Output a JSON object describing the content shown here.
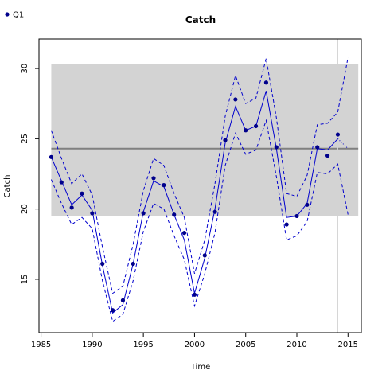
{
  "chart_data": {
    "type": "line",
    "title": "Catch",
    "xlabel": "Time",
    "ylabel": "Catch",
    "xlim": [
      1984.8,
      2016.3
    ],
    "ylim": [
      11.2,
      32.1
    ],
    "xticks": [
      1985,
      1990,
      1995,
      2000,
      2005,
      2010,
      2015
    ],
    "yticks": [
      15,
      20,
      25,
      30
    ],
    "grid": false,
    "legend_position": "top-left",
    "colors": {
      "observed": "#00008b",
      "fit": "#0000cd",
      "band": "#d3d3d3",
      "reference_line": "#808080",
      "vline": "#d3d3d3"
    },
    "legend": [
      {
        "label": "Q1",
        "color": "#00008b",
        "marker": "point"
      }
    ],
    "reference_band": {
      "x_start": 1986,
      "x_end": 2016,
      "y_low": 19.5,
      "y_high": 30.3
    },
    "reference_line": {
      "y": 24.3,
      "x_start": 1986,
      "x_end": 2016
    },
    "vertical_line": {
      "x": 2014
    },
    "observed": {
      "name": "Q1",
      "x": [
        1986,
        1987,
        1988,
        1989,
        1990,
        1991,
        1992,
        1993,
        1994,
        1995,
        1996,
        1997,
        1998,
        1999,
        2000,
        2001,
        2002,
        2003,
        2004,
        2005,
        2006,
        2007,
        2008,
        2009,
        2010,
        2011,
        2012,
        2013,
        2014
      ],
      "y": [
        23.7,
        21.9,
        20.1,
        21.1,
        19.7,
        16.1,
        12.8,
        13.5,
        16.1,
        19.7,
        22.2,
        21.7,
        19.6,
        18.3,
        13.9,
        16.7,
        19.8,
        24.9,
        27.8,
        25.6,
        25.9,
        29.0,
        24.4,
        18.9,
        19.5,
        20.3,
        24.4,
        23.8,
        25.3
      ]
    },
    "fit": {
      "x": [
        1986,
        1987,
        1988,
        1989,
        1990,
        1991,
        1992,
        1993,
        1994,
        1995,
        1996,
        1997,
        1998,
        1999,
        2000,
        2001,
        2002,
        2003,
        2004,
        2005,
        2006,
        2007,
        2008,
        2009,
        2010,
        2011,
        2012,
        2013,
        2014
      ],
      "y": [
        23.7,
        22.0,
        20.3,
        21.0,
        19.9,
        16.0,
        12.6,
        13.2,
        16.1,
        19.8,
        22.0,
        21.6,
        19.6,
        17.8,
        14.0,
        16.5,
        20.0,
        24.7,
        27.3,
        25.6,
        25.9,
        28.4,
        24.3,
        19.4,
        19.5,
        20.4,
        24.3,
        24.2,
        25.0
      ],
      "forecast_x": [
        2014,
        2015
      ],
      "forecast_y": [
        25.0,
        24.3
      ]
    },
    "upper_ci": {
      "x": [
        1986,
        1987,
        1988,
        1989,
        1990,
        1991,
        1992,
        1993,
        1994,
        1995,
        1996,
        1997,
        1998,
        1999,
        2000,
        2001,
        2002,
        2003,
        2004,
        2005,
        2006,
        2007,
        2008,
        2009,
        2010,
        2011,
        2012,
        2013,
        2014,
        2015
      ],
      "y": [
        25.6,
        23.6,
        21.8,
        22.5,
        21.0,
        17.3,
        14.0,
        14.5,
        17.5,
        21.3,
        23.6,
        23.1,
        21.1,
        19.4,
        15.4,
        17.8,
        21.8,
        26.6,
        29.5,
        27.5,
        27.9,
        30.7,
        26.5,
        21.1,
        20.9,
        22.4,
        26.0,
        26.1,
        26.9,
        30.8
      ]
    },
    "lower_ci": {
      "x": [
        1986,
        1987,
        1988,
        1989,
        1990,
        1991,
        1992,
        1993,
        1994,
        1995,
        1996,
        1997,
        1998,
        1999,
        2000,
        2001,
        2002,
        2003,
        2004,
        2005,
        2006,
        2007,
        2008,
        2009,
        2010,
        2011,
        2012,
        2013,
        2014,
        2015
      ],
      "y": [
        22.1,
        20.4,
        18.9,
        19.4,
        18.6,
        14.9,
        12.0,
        12.5,
        14.9,
        18.4,
        20.4,
        20.0,
        18.1,
        16.4,
        13.1,
        15.4,
        18.3,
        23.1,
        25.4,
        23.9,
        24.2,
        26.3,
        22.3,
        17.8,
        18.1,
        19.1,
        22.6,
        22.5,
        23.2,
        19.6
      ]
    }
  }
}
